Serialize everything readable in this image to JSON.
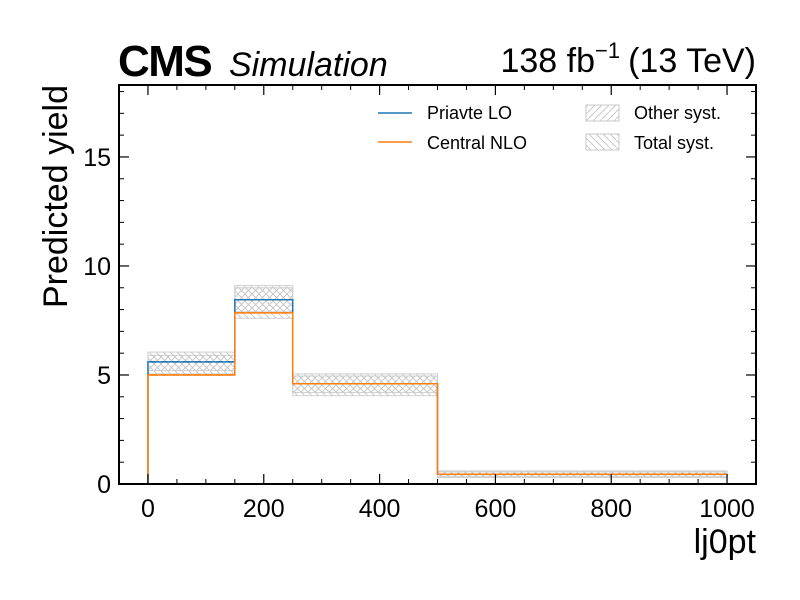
{
  "chart_data": {
    "type": "step-histogram",
    "header": {
      "experiment": "CMS",
      "label": "Simulation",
      "lumi_value": "138 fb",
      "lumi_exponent": "−1",
      "energy": "(13 TeV)"
    },
    "xlabel": "lj0pt",
    "ylabel": "Predicted yield",
    "xlim": [
      -50,
      1050
    ],
    "ylim": [
      0,
      18.3
    ],
    "x_ticks": [
      0,
      200,
      400,
      600,
      800,
      1000
    ],
    "x_tick_labels": [
      "0",
      "200",
      "400",
      "600",
      "800",
      "1000"
    ],
    "y_ticks": [
      0,
      5,
      10,
      15
    ],
    "y_tick_labels": [
      "0",
      "5",
      "10",
      "15"
    ],
    "bin_edges": [
      0,
      150,
      250,
      500,
      1000
    ],
    "series": [
      {
        "name": "Priavte LO",
        "values": [
          5.6,
          8.45,
          4.6,
          0.45
        ],
        "color": "#1f77b4"
      },
      {
        "name": "Central NLO",
        "values": [
          5.0,
          7.85,
          4.6,
          0.45
        ],
        "color": "#ff7f0e"
      }
    ],
    "bands": [
      {
        "name": "Other syst.",
        "hatch": "forward-diagonal",
        "low": [
          5.2,
          7.9,
          4.2,
          0.35
        ],
        "high": [
          5.9,
          9.0,
          4.95,
          0.55
        ]
      },
      {
        "name": "Total syst.",
        "hatch": "backward-diagonal",
        "low": [
          5.05,
          7.6,
          4.05,
          0.3
        ],
        "high": [
          6.05,
          9.1,
          5.05,
          0.6
        ]
      }
    ],
    "legend_position": "top-right",
    "legend_columns": 2,
    "grid": false
  }
}
